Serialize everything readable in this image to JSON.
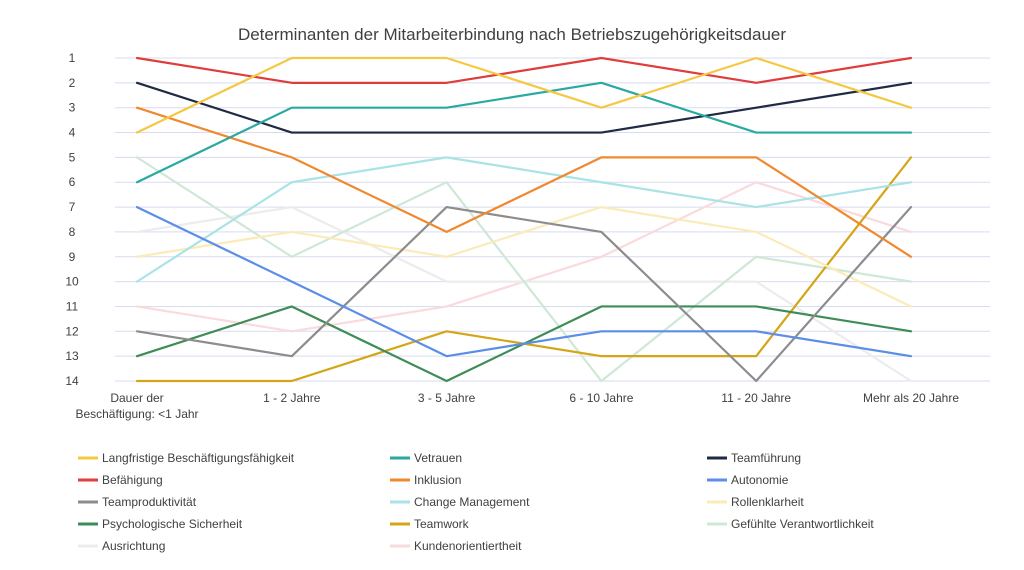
{
  "chart_data": {
    "type": "line",
    "title": "Determinanten der Mitarbeiterbindung nach Betriebszugehörigkeitsdauer",
    "categories": [
      "Dauer der Beschäftigung: <1 Jahr",
      "1 - 2 Jahre",
      "3 - 5 Jahre",
      "6 - 10 Jahre",
      "11 - 20 Jahre",
      "Mehr als 20 Jahre"
    ],
    "y_ticks": [
      "1",
      "2",
      "3",
      "4",
      "5",
      "6",
      "7",
      "8",
      "9",
      "10",
      "11",
      "12",
      "13",
      "14"
    ],
    "ylim": [
      1,
      14
    ],
    "y_reversed": true,
    "grid": true,
    "legend_position": "bottom",
    "series": [
      {
        "name": "Langfristige Beschäftigungsfähigkeit",
        "color": "#f5c842",
        "values": [
          4,
          1,
          1,
          3,
          1,
          3
        ]
      },
      {
        "name": "Vetrauen",
        "color": "#2aa9a1",
        "values": [
          6,
          3,
          3,
          2,
          4,
          4
        ]
      },
      {
        "name": "Teamführung",
        "color": "#1f2a44",
        "values": [
          2,
          4,
          4,
          4,
          3,
          2
        ]
      },
      {
        "name": "Befähigung",
        "color": "#e03c3c",
        "values": [
          1,
          2,
          2,
          1,
          2,
          1
        ]
      },
      {
        "name": "Inklusion",
        "color": "#f0882e",
        "values": [
          3,
          5,
          8,
          5,
          5,
          9
        ]
      },
      {
        "name": "Autonomie",
        "color": "#5b8ee6",
        "values": [
          7,
          10,
          13,
          12,
          12,
          13
        ]
      },
      {
        "name": "Teamproduktivität",
        "color": "#8c8c8c",
        "values": [
          12,
          13,
          7,
          8,
          14,
          7
        ]
      },
      {
        "name": "Change Management",
        "color": "#a9e3e6",
        "values": [
          10,
          6,
          5,
          6,
          7,
          6
        ]
      },
      {
        "name": "Rollenklarheit",
        "color": "#fbebb8",
        "values": [
          9,
          8,
          9,
          7,
          8,
          11
        ]
      },
      {
        "name": "Psychologische Sicherheit",
        "color": "#3e8c57",
        "values": [
          13,
          11,
          14,
          11,
          11,
          12
        ]
      },
      {
        "name": "Teamwork",
        "color": "#d4a514",
        "values": [
          14,
          14,
          12,
          13,
          13,
          5
        ]
      },
      {
        "name": "Gefühlte Verantwortlichkeit",
        "color": "#cfe8d6",
        "values": [
          5,
          9,
          6,
          14,
          9,
          10
        ]
      },
      {
        "name": "Ausrichtung",
        "color": "#ececec",
        "values": [
          8,
          7,
          10,
          10,
          10,
          14
        ]
      },
      {
        "name": "Kundenorientiertheit",
        "color": "#fadadd",
        "values": [
          11,
          12,
          11,
          9,
          6,
          8
        ]
      }
    ]
  }
}
